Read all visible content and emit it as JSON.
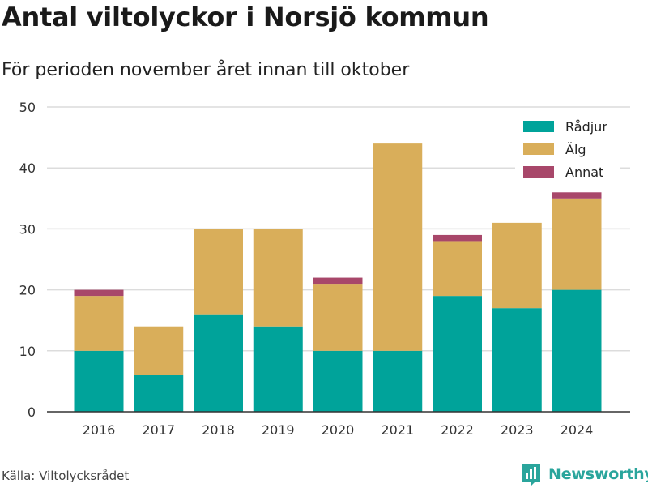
{
  "header": {
    "title": "Antal viltolyckor i Norsjö kommun",
    "subtitle": "För perioden november året innan till oktober"
  },
  "footer": {
    "source": "Källa: Viltolycksrådet",
    "brand": "Newsworthy",
    "brand_icon": "bar-chart-logo-icon"
  },
  "colors": {
    "Rådjur": "#00a39a",
    "Älg": "#d9ae5a",
    "Annat": "#a8476a",
    "grid": "#dcdcdc",
    "axis": "#333333",
    "brand": "#2aa59c"
  },
  "chart_data": {
    "type": "bar",
    "stacked": true,
    "categories": [
      "2016",
      "2017",
      "2018",
      "2019",
      "2020",
      "2021",
      "2022",
      "2023",
      "2024"
    ],
    "series": [
      {
        "name": "Rådjur",
        "values": [
          10,
          6,
          16,
          14,
          10,
          10,
          19,
          17,
          20
        ]
      },
      {
        "name": "Älg",
        "values": [
          9,
          8,
          14,
          16,
          11,
          34,
          9,
          14,
          15
        ]
      },
      {
        "name": "Annat",
        "values": [
          1,
          0,
          0,
          0,
          1,
          0,
          1,
          0,
          1
        ]
      }
    ],
    "ylim": [
      0,
      50
    ],
    "yticks": [
      0,
      10,
      20,
      30,
      40,
      50
    ],
    "grid": true,
    "legend": "top-right"
  }
}
